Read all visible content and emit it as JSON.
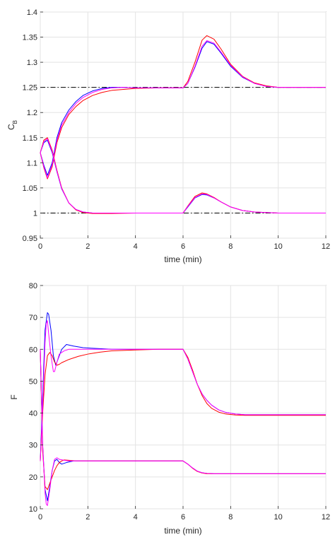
{
  "chart_data": [
    {
      "type": "line",
      "title": "",
      "xlabel": "time (min)",
      "ylabel_main": "C",
      "ylabel_sub": "B",
      "xlim": [
        0,
        12
      ],
      "ylim": [
        0.95,
        1.4
      ],
      "xticks": [
        "0",
        "2",
        "4",
        "6",
        "8",
        "10",
        "12"
      ],
      "yticks": [
        "0.95",
        "1",
        "1.05",
        "1.1",
        "1.15",
        "1.2",
        "1.25",
        "1.3",
        "1.35",
        "1.4"
      ],
      "grid": true,
      "reference_lines": [
        {
          "y": 1.25,
          "style": "dash-dot",
          "color": "#000000"
        },
        {
          "y": 1.0,
          "style": "dash-dot",
          "color": "#000000"
        }
      ],
      "series": [
        {
          "color": "#0000ff",
          "x": [
            0,
            0.15,
            0.3,
            0.5,
            0.7,
            0.9,
            1.2,
            1.5,
            1.8,
            2.2,
            2.6,
            3,
            3.5,
            4,
            5,
            6,
            6.2,
            6.5,
            6.8,
            7,
            7.3,
            7.6,
            8,
            8.5,
            9,
            9.5,
            10,
            11,
            12
          ],
          "y": [
            1.12,
            1.095,
            1.075,
            1.1,
            1.15,
            1.18,
            1.205,
            1.222,
            1.234,
            1.243,
            1.248,
            1.25,
            1.25,
            1.249,
            1.249,
            1.249,
            1.258,
            1.29,
            1.328,
            1.341,
            1.336,
            1.318,
            1.292,
            1.27,
            1.258,
            1.252,
            1.25,
            1.25,
            1.25
          ]
        },
        {
          "color": "#0000ff",
          "x": [
            0,
            0.15,
            0.3,
            0.5,
            0.7,
            0.9,
            1.2,
            1.5,
            1.8,
            2.2,
            2.6,
            3,
            4,
            5,
            6,
            6.2,
            6.5,
            6.8,
            7,
            7.3,
            7.6,
            8,
            8.5,
            9,
            10,
            11,
            12
          ],
          "y": [
            1.12,
            1.14,
            1.145,
            1.12,
            1.082,
            1.048,
            1.02,
            1.007,
            1.002,
            1.0,
            1.0,
            1.0,
            1.0,
            1.0,
            1.0,
            1.012,
            1.03,
            1.037,
            1.036,
            1.03,
            1.022,
            1.012,
            1.005,
            1.002,
            1.0,
            1.0,
            1.0
          ]
        },
        {
          "color": "#ff0000",
          "x": [
            0,
            0.15,
            0.3,
            0.5,
            0.7,
            0.9,
            1.2,
            1.5,
            1.8,
            2.2,
            2.6,
            3,
            3.5,
            4,
            5,
            6,
            6.2,
            6.5,
            6.8,
            7,
            7.3,
            7.6,
            8,
            8.5,
            9,
            9.5,
            10,
            11,
            12
          ],
          "y": [
            1.12,
            1.09,
            1.068,
            1.092,
            1.14,
            1.17,
            1.196,
            1.212,
            1.224,
            1.234,
            1.24,
            1.244,
            1.246,
            1.248,
            1.249,
            1.249,
            1.262,
            1.3,
            1.344,
            1.353,
            1.346,
            1.326,
            1.296,
            1.272,
            1.259,
            1.253,
            1.25,
            1.25,
            1.25
          ]
        },
        {
          "color": "#ff0000",
          "x": [
            0,
            0.15,
            0.3,
            0.5,
            0.7,
            0.9,
            1.2,
            1.5,
            1.8,
            2.2,
            2.6,
            3,
            4,
            5,
            6,
            6.2,
            6.5,
            6.8,
            7,
            7.3,
            7.6,
            8,
            8.5,
            9,
            10,
            11,
            12
          ],
          "y": [
            1.12,
            1.145,
            1.15,
            1.125,
            1.085,
            1.05,
            1.02,
            1.006,
            1.001,
            0.999,
            0.999,
            0.999,
            1.0,
            1.0,
            1.0,
            1.014,
            1.033,
            1.04,
            1.038,
            1.031,
            1.022,
            1.012,
            1.005,
            1.002,
            1.0,
            1.0,
            1.0
          ]
        },
        {
          "color": "#ff00ff",
          "x": [
            0,
            0.15,
            0.3,
            0.5,
            0.7,
            0.9,
            1.2,
            1.5,
            1.8,
            2.2,
            2.6,
            3,
            3.5,
            4,
            5,
            6,
            6.2,
            6.5,
            6.8,
            7,
            7.3,
            7.6,
            8,
            8.5,
            9,
            9.5,
            10,
            11,
            12
          ],
          "y": [
            1.12,
            1.092,
            1.07,
            1.096,
            1.145,
            1.175,
            1.2,
            1.218,
            1.23,
            1.24,
            1.246,
            1.249,
            1.25,
            1.249,
            1.249,
            1.249,
            1.258,
            1.292,
            1.332,
            1.343,
            1.338,
            1.32,
            1.294,
            1.271,
            1.258,
            1.252,
            1.25,
            1.25,
            1.25
          ]
        },
        {
          "color": "#ff00ff",
          "x": [
            0,
            0.15,
            0.3,
            0.5,
            0.7,
            0.9,
            1.2,
            1.5,
            1.8,
            2.2,
            2.6,
            3,
            4,
            5,
            6,
            6.2,
            6.5,
            6.8,
            7,
            7.3,
            7.6,
            8,
            8.5,
            9,
            10,
            11,
            12
          ],
          "y": [
            1.12,
            1.142,
            1.148,
            1.122,
            1.083,
            1.049,
            1.02,
            1.007,
            1.002,
            1.0,
            1.0,
            1.0,
            1.0,
            1.0,
            1.0,
            1.013,
            1.031,
            1.038,
            1.037,
            1.03,
            1.022,
            1.012,
            1.005,
            1.002,
            1.0,
            1.0,
            1.0
          ]
        }
      ]
    },
    {
      "type": "line",
      "title": "",
      "xlabel": "time (min)",
      "ylabel": "F",
      "xlim": [
        0,
        12
      ],
      "ylim": [
        10,
        80
      ],
      "xticks": [
        "0",
        "2",
        "4",
        "6",
        "8",
        "10",
        "12"
      ],
      "yticks": [
        "10",
        "20",
        "30",
        "40",
        "50",
        "60",
        "70",
        "80"
      ],
      "grid": true,
      "series": [
        {
          "color": "#0000ff",
          "x": [
            0,
            0.1,
            0.2,
            0.3,
            0.35,
            0.45,
            0.55,
            0.65,
            0.75,
            0.9,
            1.1,
            1.4,
            1.8,
            2.5,
            3,
            4,
            5,
            6,
            6.2,
            6.4,
            6.6,
            6.8,
            7,
            7.2,
            7.5,
            7.8,
            8.2,
            8.6,
            9,
            10,
            11,
            12
          ],
          "y": [
            25,
            45,
            66,
            71.5,
            71,
            66,
            58,
            55,
            57,
            60,
            61.5,
            61,
            60.5,
            60.2,
            60,
            60,
            60,
            60,
            57,
            53,
            49,
            46,
            44,
            42.5,
            41,
            40.2,
            39.7,
            39.5,
            39.5,
            39.5,
            39.5,
            39.5
          ]
        },
        {
          "color": "#0000ff",
          "x": [
            0,
            0.1,
            0.2,
            0.3,
            0.4,
            0.5,
            0.6,
            0.7,
            0.8,
            0.9,
            1.1,
            1.4,
            1.8,
            2.5,
            3,
            4,
            5,
            6,
            6.2,
            6.4,
            6.6,
            6.8,
            7,
            7.3,
            7.6,
            8,
            9,
            10,
            11,
            12
          ],
          "y": [
            60,
            30,
            16,
            12.5,
            17,
            22,
            25,
            25.5,
            24.5,
            24,
            24.5,
            25,
            25,
            25,
            25,
            25,
            25,
            25,
            24,
            22.8,
            21.8,
            21.3,
            21.1,
            21,
            21,
            21,
            21,
            21,
            21,
            21
          ]
        },
        {
          "color": "#ff0000",
          "x": [
            0,
            0.1,
            0.2,
            0.3,
            0.4,
            0.5,
            0.6,
            0.7,
            0.8,
            0.9,
            1.2,
            1.6,
            2,
            2.5,
            3,
            4,
            5,
            6,
            6.2,
            6.4,
            6.6,
            6.8,
            7,
            7.2,
            7.5,
            7.8,
            8.2,
            8.6,
            9,
            10,
            11,
            12
          ],
          "y": [
            25,
            40,
            52,
            58,
            59,
            58,
            56,
            55,
            55.3,
            55.8,
            56.8,
            57.8,
            58.5,
            59.1,
            59.5,
            59.8,
            60,
            60,
            57.5,
            53.5,
            49,
            45.5,
            43,
            41.5,
            40.3,
            39.7,
            39.4,
            39.3,
            39.3,
            39.3,
            39.3,
            39.3
          ]
        },
        {
          "color": "#ff0000",
          "x": [
            0,
            0.1,
            0.2,
            0.3,
            0.4,
            0.5,
            0.6,
            0.7,
            0.8,
            0.9,
            1.0,
            1.2,
            1.5,
            2,
            3,
            4,
            5,
            6,
            6.2,
            6.4,
            6.6,
            6.8,
            7,
            7.3,
            7.6,
            8,
            9,
            10,
            11,
            12
          ],
          "y": [
            60,
            28,
            17,
            16,
            18,
            20,
            22,
            23.5,
            24.5,
            25,
            25.3,
            25.2,
            25,
            25,
            25,
            25,
            25,
            25,
            24,
            22.7,
            21.7,
            21.2,
            21,
            21,
            21,
            21,
            21,
            21,
            21,
            21
          ]
        },
        {
          "color": "#ff00ff",
          "x": [
            0,
            0.1,
            0.2,
            0.25,
            0.3,
            0.35,
            0.45,
            0.55,
            0.6,
            0.7,
            0.8,
            1.0,
            1.2,
            1.5,
            2,
            3,
            4,
            5,
            6,
            6.2,
            6.4,
            6.6,
            6.8,
            7,
            7.2,
            7.5,
            7.8,
            8.2,
            8.6,
            9,
            10,
            11,
            12
          ],
          "y": [
            25,
            42,
            62,
            68,
            69,
            65,
            58,
            53,
            53,
            56,
            58.5,
            59.5,
            60,
            60,
            60,
            60,
            60,
            60,
            60,
            57,
            53,
            49,
            46,
            44,
            42.5,
            41,
            40.2,
            39.7,
            39.5,
            39.5,
            39.5,
            39.5,
            39.5
          ]
        },
        {
          "color": "#ff00ff",
          "x": [
            0,
            0.1,
            0.2,
            0.25,
            0.3,
            0.4,
            0.5,
            0.6,
            0.7,
            0.8,
            1.0,
            1.2,
            1.5,
            2,
            3,
            4,
            5,
            6,
            6.2,
            6.4,
            6.6,
            6.8,
            7,
            7.3,
            7.6,
            8,
            9,
            10,
            11,
            12
          ],
          "y": [
            60,
            30,
            15,
            11.5,
            11,
            16,
            22,
            25.5,
            26,
            25.5,
            25.2,
            25,
            25,
            25,
            25,
            25,
            25,
            25,
            24,
            22.8,
            21.8,
            21.3,
            21.1,
            21,
            21,
            21,
            21,
            21,
            21,
            21
          ]
        }
      ]
    }
  ]
}
